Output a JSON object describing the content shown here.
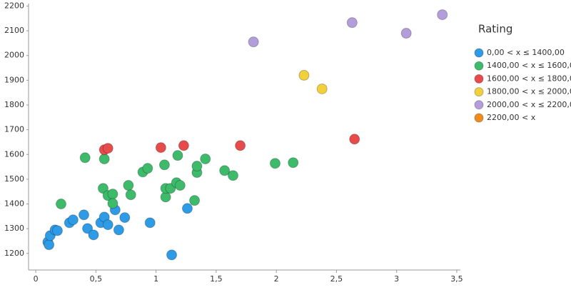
{
  "chart_data": {
    "type": "scatter",
    "legend_title": "Rating",
    "legend_position": "right",
    "xlim": [
      -0.06,
      3.53
    ],
    "ylim": [
      1133,
      2210
    ],
    "xticks": [
      0,
      {
        "value": 0.5,
        "label": "0,5"
      },
      1,
      {
        "value": 1.5,
        "label": "1,5"
      },
      2,
      {
        "value": 2.5,
        "label": "2,5"
      },
      3,
      {
        "value": 3.5,
        "label": "3,5"
      }
    ],
    "yticks": [
      1200,
      1300,
      1400,
      1500,
      1600,
      1700,
      1800,
      1900,
      2000,
      2100,
      2200
    ],
    "grid": false,
    "series": [
      {
        "name": "0,00 < x ≤ 1400,00",
        "color": "#2e9be6",
        "x": [
          0.1,
          0.11,
          0.12,
          0.16,
          0.18,
          0.28,
          0.31,
          0.4,
          0.43,
          0.48,
          0.54,
          0.57,
          0.6,
          0.66,
          0.69,
          0.74,
          0.95,
          1.13,
          1.26
        ],
        "values": [
          1246,
          1235,
          1272,
          1295,
          1292,
          1324,
          1336,
          1356,
          1301,
          1275,
          1324,
          1347,
          1316,
          1376,
          1295,
          1345,
          1324,
          1194,
          1382
        ]
      },
      {
        "name": "1400,00 < x ≤ 1600,00",
        "color": "#3dbb6a",
        "x": [
          0.21,
          0.41,
          0.57,
          0.56,
          0.6,
          0.64,
          0.64,
          0.77,
          0.79,
          0.89,
          0.93,
          1.07,
          1.08,
          1.08,
          1.12,
          1.17,
          1.2,
          1.18,
          1.32,
          1.34,
          1.34,
          1.41,
          1.57,
          1.64,
          1.99,
          2.14
        ],
        "values": [
          1400,
          1587,
          1582,
          1463,
          1434,
          1440,
          1402,
          1475,
          1437,
          1529,
          1544,
          1558,
          1428,
          1463,
          1463,
          1486,
          1475,
          1596,
          1414,
          1527,
          1553,
          1582,
          1535,
          1515,
          1564,
          1567
        ]
      },
      {
        "name": "1600,00 < x ≤ 1800,00",
        "color": "#e84b4b",
        "x": [
          0.57,
          0.6,
          1.04,
          1.23,
          1.7,
          2.65
        ],
        "values": [
          1619,
          1625,
          1628,
          1636,
          1636,
          1662
        ]
      },
      {
        "name": "1800,00 < x ≤ 2000,00",
        "color": "#f2d03b",
        "x": [
          2.23,
          2.38
        ],
        "values": [
          1920,
          1865
        ]
      },
      {
        "name": "2000,00 < x ≤ 2200,00",
        "color": "#b39ddb",
        "x": [
          1.81,
          2.63,
          3.08,
          3.38
        ],
        "values": [
          2055,
          2133,
          2090,
          2165
        ]
      },
      {
        "name": "2200,00 < x",
        "color": "#f08c1a",
        "x": [],
        "values": []
      }
    ]
  }
}
